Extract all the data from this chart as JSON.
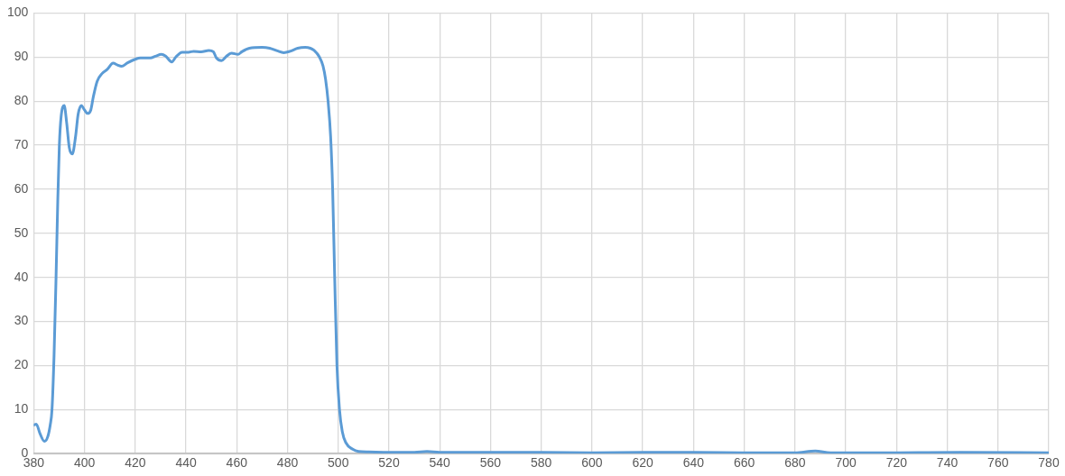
{
  "chart_data": {
    "type": "line",
    "xlim": [
      380,
      780
    ],
    "xticks": [
      380,
      400,
      420,
      440,
      460,
      480,
      500,
      520,
      540,
      560,
      580,
      600,
      620,
      640,
      660,
      680,
      700,
      720,
      740,
      760,
      780
    ],
    "ylim": [
      0,
      100
    ],
    "yticks": [
      0,
      10,
      20,
      30,
      40,
      50,
      60,
      70,
      80,
      90,
      100
    ],
    "grid": true,
    "legend": false,
    "marker": "none",
    "line_style": "solid",
    "series": [
      {
        "color": "#5b9bd5",
        "x": [
          380,
          381,
          382.5,
          384.2,
          385.5,
          386.5,
          387.2,
          388,
          388.8,
          389.5,
          390.1,
          390.8,
          392,
          393,
          394,
          395.2,
          396.5,
          397.5,
          398.8,
          400,
          401.2,
          402.5,
          403.5,
          405,
          407,
          409,
          411.3,
          413,
          414.6,
          417,
          420,
          422,
          426,
          428,
          430.3,
          432,
          434.4,
          436,
          438.5,
          441,
          443,
          446,
          449,
          450.8,
          452,
          454,
          456,
          458,
          460.5,
          462,
          465,
          470,
          473,
          476,
          478.5,
          481,
          484,
          487,
          489,
          490.5,
          492.6,
          494,
          495,
          496,
          497,
          497.8,
          498.6,
          499.5,
          500.5,
          501.6,
          503,
          505.7,
          508,
          512,
          520,
          530,
          535,
          540,
          560,
          580,
          600,
          620,
          640,
          660,
          680,
          688,
          694,
          720,
          745,
          780
        ],
        "values": [
          6.5,
          6.7,
          4.5,
          2.8,
          3.8,
          6.5,
          10,
          22,
          40,
          58,
          70,
          76.5,
          79,
          75,
          69.5,
          68,
          72,
          77,
          79,
          78,
          77.2,
          78,
          81,
          84.5,
          86.3,
          87.2,
          88.6,
          88.2,
          87.9,
          88.7,
          89.5,
          89.8,
          89.8,
          90.2,
          90.6,
          90.2,
          88.9,
          90,
          91.1,
          91.1,
          91.3,
          91.2,
          91.5,
          91.2,
          89.8,
          89.2,
          90.2,
          90.9,
          90.6,
          91.2,
          92,
          92.2,
          92,
          91.4,
          91,
          91.3,
          92,
          92.2,
          92,
          91.5,
          90,
          88,
          85,
          80,
          72,
          60,
          40,
          20,
          10,
          5,
          2.5,
          1,
          0.5,
          0.4,
          0.3,
          0.3,
          0.5,
          0.3,
          0.3,
          0.3,
          0.2,
          0.3,
          0.3,
          0.2,
          0.2,
          0.6,
          0.2,
          0.2,
          0.3,
          0.2
        ]
      }
    ]
  }
}
